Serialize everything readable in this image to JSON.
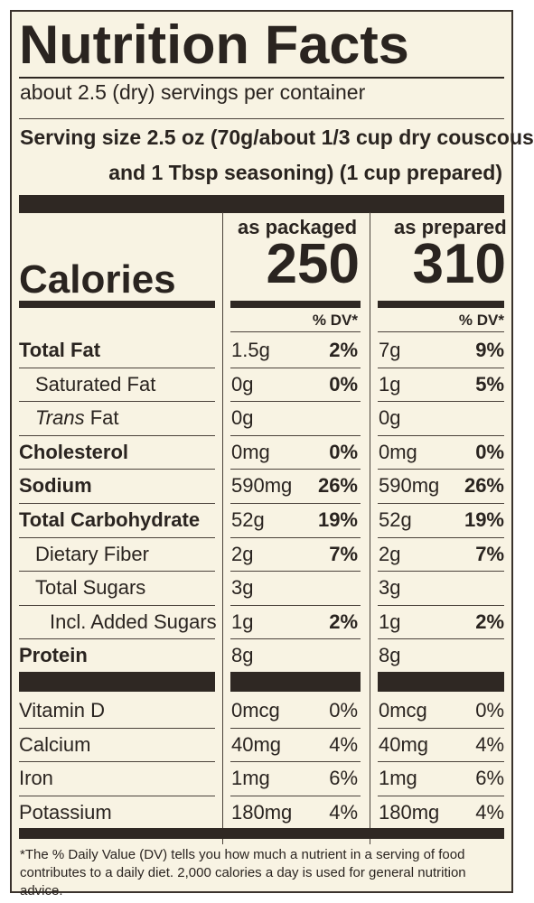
{
  "title": "Nutrition Facts",
  "servings_per_container": "about 2.5 (dry) servings per container",
  "serving_size_line1": "Serving size 2.5 oz (70g/about 1/3 cup dry couscous",
  "serving_size_line2": "and 1 Tbsp seasoning) (1 cup prepared)",
  "calories_label": "Calories",
  "columns": [
    {
      "heading": "as packaged",
      "calories": "250",
      "dv_heading": "% DV*"
    },
    {
      "heading": "as prepared",
      "calories": "310",
      "dv_heading": "% DV*"
    }
  ],
  "nutrients": [
    {
      "label": "Total Fat",
      "bold": true,
      "indent": 0,
      "italic_prefix": "",
      "packaged_amount": "1.5g",
      "packaged_dv": "2%",
      "prepared_amount": "7g",
      "prepared_dv": "9%"
    },
    {
      "label": "Saturated Fat",
      "bold": false,
      "indent": 1,
      "italic_prefix": "",
      "packaged_amount": "0g",
      "packaged_dv": "0%",
      "prepared_amount": "1g",
      "prepared_dv": "5%"
    },
    {
      "label": " Fat",
      "bold": false,
      "indent": 1,
      "italic_prefix": "Trans",
      "packaged_amount": "0g",
      "packaged_dv": "",
      "prepared_amount": "0g",
      "prepared_dv": ""
    },
    {
      "label": "Cholesterol",
      "bold": true,
      "indent": 0,
      "italic_prefix": "",
      "packaged_amount": "0mg",
      "packaged_dv": "0%",
      "prepared_amount": "0mg",
      "prepared_dv": "0%"
    },
    {
      "label": "Sodium",
      "bold": true,
      "indent": 0,
      "italic_prefix": "",
      "packaged_amount": "590mg",
      "packaged_dv": "26%",
      "prepared_amount": "590mg",
      "prepared_dv": "26%"
    },
    {
      "label": "Total Carbohydrate",
      "bold": true,
      "indent": 0,
      "italic_prefix": "",
      "packaged_amount": "52g",
      "packaged_dv": "19%",
      "prepared_amount": "52g",
      "prepared_dv": "19%"
    },
    {
      "label": "Dietary Fiber",
      "bold": false,
      "indent": 1,
      "italic_prefix": "",
      "packaged_amount": "2g",
      "packaged_dv": "7%",
      "prepared_amount": "2g",
      "prepared_dv": "7%"
    },
    {
      "label": "Total Sugars",
      "bold": false,
      "indent": 1,
      "italic_prefix": "",
      "packaged_amount": "3g",
      "packaged_dv": "",
      "prepared_amount": "3g",
      "prepared_dv": ""
    },
    {
      "label": "Incl. Added Sugars",
      "bold": false,
      "indent": 2,
      "italic_prefix": "",
      "packaged_amount": "1g",
      "packaged_dv": "2%",
      "prepared_amount": "1g",
      "prepared_dv": "2%"
    },
    {
      "label": "Protein",
      "bold": true,
      "indent": 0,
      "italic_prefix": "",
      "packaged_amount": "8g",
      "packaged_dv": "",
      "prepared_amount": "8g",
      "prepared_dv": ""
    }
  ],
  "vitamins": [
    {
      "label": "Vitamin D",
      "packaged_amount": "0mcg",
      "packaged_dv": "0%",
      "prepared_amount": "0mcg",
      "prepared_dv": "0%"
    },
    {
      "label": "Calcium",
      "packaged_amount": "40mg",
      "packaged_dv": "4%",
      "prepared_amount": "40mg",
      "prepared_dv": "4%"
    },
    {
      "label": "Iron",
      "packaged_amount": "1mg",
      "packaged_dv": "6%",
      "prepared_amount": "1mg",
      "prepared_dv": "6%"
    },
    {
      "label": "Potassium",
      "packaged_amount": "180mg",
      "packaged_dv": "4%",
      "prepared_amount": "180mg",
      "prepared_dv": "4%"
    }
  ],
  "footnote": "*The % Daily Value (DV) tells you how much a nutrient in a serving of food contributes to a daily diet. 2,000 calories a day is used for general nutrition advice.",
  "colors": {
    "ink": "#2a2420",
    "background": "#f8f3e3",
    "bar": "#2f2823"
  }
}
